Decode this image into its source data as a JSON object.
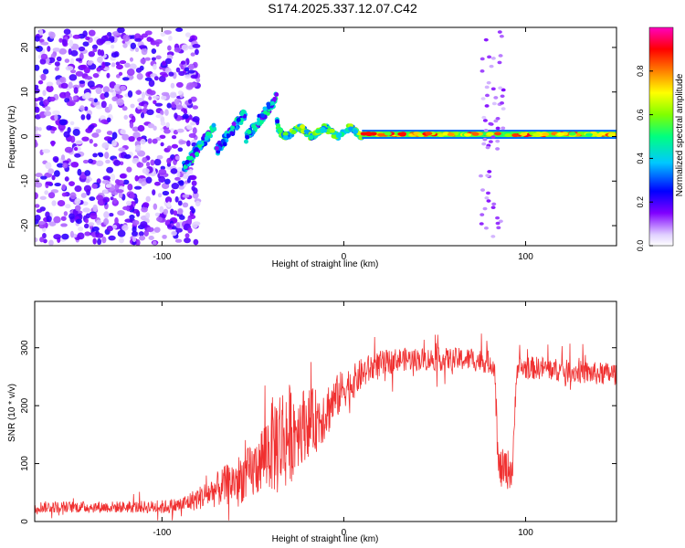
{
  "title": "S174.2025.337.12.07.C42",
  "chart_data": [
    {
      "type": "heatmap",
      "name": "spectrogram",
      "xlabel": "Height of straight line (km)",
      "ylabel": "Frequency (Hz)",
      "xlim": [
        -170,
        150
      ],
      "ylim": [
        -24.5,
        24.5
      ],
      "xticks": [
        -100,
        0,
        100
      ],
      "yticks": [
        -20,
        -10,
        0,
        10,
        20
      ],
      "colorbar": {
        "label": "Normalized spectral amplitude",
        "range": [
          0,
          1
        ],
        "ticks": [
          0.0,
          0.2,
          0.4,
          0.6,
          0.8
        ],
        "tick_labels": [
          "0.0",
          "0.2",
          "0.4",
          "0.6",
          "0.8"
        ],
        "colors": [
          "#ffffff",
          "#c0a0ff",
          "#8000ff",
          "#0000ff",
          "#00d0ff",
          "#00ff60",
          "#80ff00",
          "#ffff00",
          "#ff8000",
          "#ff0000",
          "#ff00a0"
        ]
      },
      "features": [
        {
          "x": [
            -170,
            -80
          ],
          "freq_range": [
            -24,
            24
          ],
          "amplitude": 0.15,
          "kind": "broadband noise"
        },
        {
          "x": [
            -88,
            -36
          ],
          "freq_center_start": -5,
          "freq_center_end": 5,
          "amplitude": 0.35,
          "kind": "rising arcs"
        },
        {
          "x": [
            -36,
            10
          ],
          "freq_center": 1,
          "amplitude": 0.45,
          "kind": "wavy line"
        },
        {
          "x": [
            10,
            150
          ],
          "freq_center": 0.5,
          "amplitude": 0.85,
          "kind": "steady carrier"
        },
        {
          "x": [
            75,
            88
          ],
          "freq_range": [
            -24,
            24
          ],
          "amplitude": 0.1,
          "kind": "interference column"
        }
      ]
    },
    {
      "type": "line",
      "name": "snr",
      "xlabel": "Height of straight line (km)",
      "ylabel": "SNR (10 * v/v)",
      "xlim": [
        -170,
        150
      ],
      "ylim": [
        0,
        380
      ],
      "xticks": [
        -100,
        0,
        100
      ],
      "yticks": [
        0,
        100,
        200,
        300
      ],
      "color": "#f03030",
      "series": [
        {
          "name": "SNR",
          "x": [
            -170,
            -140,
            -120,
            -100,
            -90,
            -80,
            -70,
            -60,
            -50,
            -45,
            -40,
            -36,
            -30,
            -25,
            -20,
            -15,
            -10,
            -5,
            0,
            5,
            10,
            15,
            20,
            25,
            30,
            40,
            50,
            60,
            70,
            80,
            83,
            85,
            90,
            93,
            95,
            100,
            110,
            120,
            130,
            140,
            150
          ],
          "y": [
            25,
            25,
            25,
            25,
            28,
            40,
            55,
            70,
            85,
            110,
            130,
            140,
            150,
            165,
            170,
            175,
            190,
            210,
            230,
            240,
            255,
            265,
            270,
            275,
            280,
            280,
            280,
            280,
            280,
            275,
            270,
            90,
            90,
            90,
            265,
            265,
            265,
            260,
            258,
            255,
            255
          ],
          "spread": [
            10,
            10,
            10,
            12,
            14,
            20,
            30,
            40,
            50,
            60,
            80,
            100,
            90,
            70,
            60,
            55,
            50,
            40,
            35,
            30,
            28,
            25,
            25,
            22,
            20,
            20,
            20,
            20,
            20,
            20,
            20,
            35,
            35,
            35,
            20,
            20,
            20,
            20,
            20,
            20,
            20
          ]
        }
      ]
    }
  ]
}
